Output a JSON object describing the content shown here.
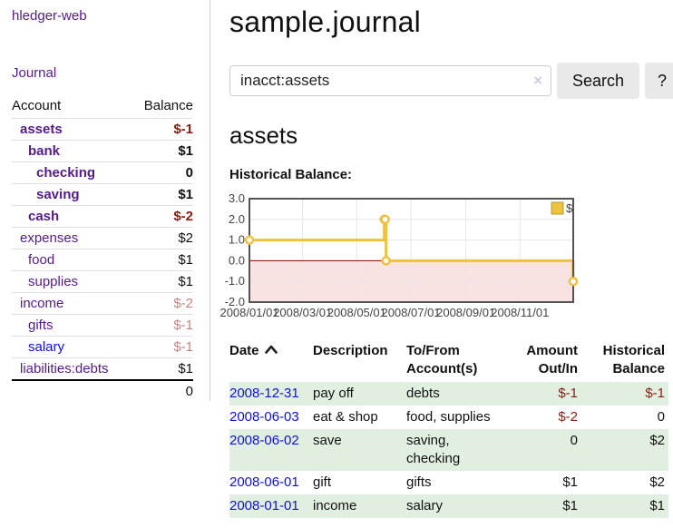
{
  "colors": {
    "purple": "#551a8b",
    "blue": "#1010dd",
    "neg-strong": "#8b1a10",
    "neg-muted": "#c5827e",
    "row-green": "#e0efe0",
    "btn-bg": "#e9e9e9",
    "chart-gold": "#edc240",
    "chart-pink": "#f9e2e2"
  },
  "app": {
    "brand": "hledger-web"
  },
  "sidebar": {
    "journal_link": "Journal",
    "table": {
      "account_header": "Account",
      "balance_header": "Balance",
      "rows": [
        {
          "account": "assets",
          "balance": "$-1",
          "level": 1,
          "bold": true,
          "balance_style": "neg-strong",
          "link_style": "purple"
        },
        {
          "account": "bank",
          "balance": "$1",
          "level": 2,
          "bold": true,
          "balance_style": "normal",
          "link_style": "purple"
        },
        {
          "account": "checking",
          "balance": "0",
          "level": 3,
          "bold": true,
          "balance_style": "normal",
          "link_style": "purple"
        },
        {
          "account": "saving",
          "balance": "$1",
          "level": 3,
          "bold": true,
          "balance_style": "normal",
          "link_style": "purple"
        },
        {
          "account": "cash",
          "balance": "$-2",
          "level": 2,
          "bold": true,
          "balance_style": "neg-strong",
          "link_style": "purple"
        },
        {
          "account": "expenses",
          "balance": "$2",
          "level": 1,
          "bold": false,
          "balance_style": "normal",
          "link_style": "purple"
        },
        {
          "account": "food",
          "balance": "$1",
          "level": 2,
          "bold": false,
          "balance_style": "normal",
          "link_style": "purple"
        },
        {
          "account": "supplies",
          "balance": "$1",
          "level": 2,
          "bold": false,
          "balance_style": "normal",
          "link_style": "purple"
        },
        {
          "account": "income",
          "balance": "$-2",
          "level": 1,
          "bold": false,
          "balance_style": "neg-muted",
          "link_style": "purple"
        },
        {
          "account": "gifts",
          "balance": "$-1",
          "level": 2,
          "bold": false,
          "balance_style": "neg-muted",
          "link_style": "purple"
        },
        {
          "account": "salary",
          "balance": "$-1",
          "level": 2,
          "bold": false,
          "balance_style": "neg-muted",
          "link_style": "blue"
        },
        {
          "account": "liabilities:debts",
          "balance": "$1",
          "level": 1,
          "bold": false,
          "balance_style": "normal",
          "link_style": "purple"
        }
      ],
      "total": "0"
    }
  },
  "header": {
    "title": "sample.journal"
  },
  "search": {
    "value": "inacct:assets",
    "clear_icon": "×",
    "button_label": "Search",
    "help_label": "?"
  },
  "account_page": {
    "title": "assets",
    "chart_label": "Historical Balance:"
  },
  "chart_data": {
    "type": "line",
    "subtype": "step",
    "title": "Historical Balance",
    "x_range": [
      "2008-01-01",
      "2008-12-31"
    ],
    "ylim": [
      -2,
      3
    ],
    "ytick_labels": [
      "3.0",
      "2.0",
      "1.0",
      "0.0",
      "-1.0",
      "-2.0"
    ],
    "xtick_labels": [
      "2008/01/01",
      "2008/03/01",
      "2008/05/01",
      "2008/07/01",
      "2008/09/01",
      "2008/11/01"
    ],
    "series": [
      {
        "name": "$",
        "color": "#edc240",
        "points": [
          [
            "2008-01-01",
            1
          ],
          [
            "2008-06-01",
            2
          ],
          [
            "2008-06-02",
            2
          ],
          [
            "2008-06-03",
            0
          ],
          [
            "2008-12-31",
            -1
          ]
        ]
      }
    ],
    "grid": true,
    "legend_position": "top-right",
    "negative_region_color": "#f9e2e2",
    "zero_line_color": "#8b0000",
    "grid_color": "#e6e6e6",
    "border_color": "#545454",
    "tick_color": "#444444"
  },
  "register": {
    "columns": [
      {
        "label": "Date",
        "label2": "",
        "align": "left",
        "sort": "asc"
      },
      {
        "label": "Description",
        "label2": "",
        "align": "left"
      },
      {
        "label": "To/From",
        "label2": "Account(s)",
        "align": "left"
      },
      {
        "label": "Amount",
        "label2": "Out/In",
        "align": "right"
      },
      {
        "label": "Historical",
        "label2": "Balance",
        "align": "right"
      }
    ],
    "rows": [
      {
        "date": "2008-12-31",
        "description": "pay off",
        "accounts": "debts",
        "amount": "$-1",
        "balance": "$-1"
      },
      {
        "date": "2008-06-03",
        "description": "eat & shop",
        "accounts": "food, supplies",
        "amount": "$-2",
        "balance": "0"
      },
      {
        "date": "2008-06-02",
        "description": "save",
        "accounts": "saving, checking",
        "amount": "0",
        "balance": "$2"
      },
      {
        "date": "2008-06-01",
        "description": "gift",
        "accounts": "gifts",
        "amount": "$1",
        "balance": "$2"
      },
      {
        "date": "2008-01-01",
        "description": "income",
        "accounts": "salary",
        "amount": "$1",
        "balance": "$1"
      }
    ]
  }
}
